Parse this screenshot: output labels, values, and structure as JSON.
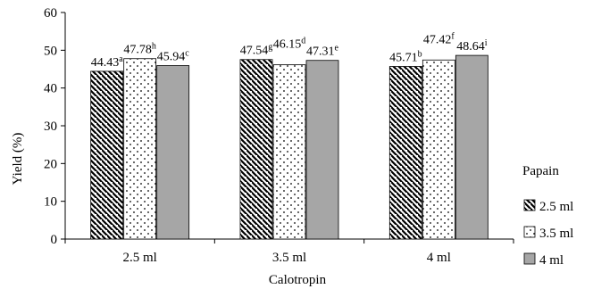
{
  "chart_data": {
    "type": "bar",
    "title": "",
    "xlabel": "Calotropin",
    "ylabel": "Yield (%)",
    "ylim": [
      0,
      60
    ],
    "yticks": [
      "0",
      "10",
      "20",
      "30",
      "40",
      "50",
      "60"
    ],
    "categories": [
      "2.5 ml",
      "3.5 ml",
      "4 ml"
    ],
    "legend_title": "Papain",
    "legend_position": "right",
    "grid": false,
    "series": [
      {
        "name": "2.5 ml",
        "pattern": "diagonal-hatch",
        "values": [
          44.43,
          47.54,
          45.71
        ],
        "labels": [
          "44.43",
          "47.54",
          "45.71"
        ],
        "letters": [
          "a",
          "g",
          "b"
        ]
      },
      {
        "name": "3.5 ml",
        "pattern": "dots",
        "values": [
          47.78,
          46.15,
          47.42
        ],
        "labels": [
          "47.78",
          "46.15",
          "47.42"
        ],
        "letters": [
          "h",
          "d",
          "f"
        ]
      },
      {
        "name": "4 ml",
        "pattern": "solid-gray",
        "color": "#a6a6a6",
        "values": [
          45.94,
          47.31,
          48.64
        ],
        "labels": [
          "45.94",
          "47.31",
          "48.64"
        ],
        "letters": [
          "c",
          "e",
          "i"
        ]
      }
    ]
  }
}
